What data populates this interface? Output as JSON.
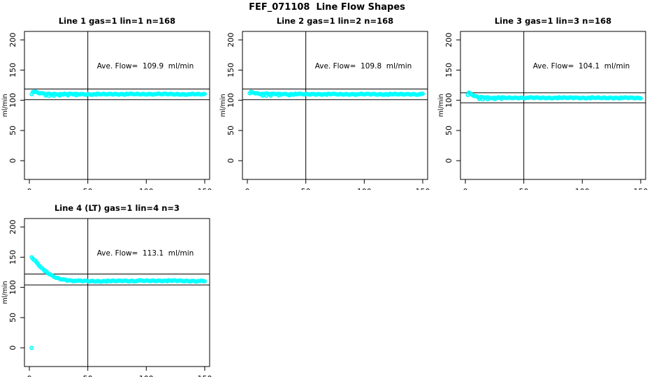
{
  "page_title": "FEF_071108  Line Flow Shapes",
  "colors": {
    "data_color": "#00ffff",
    "axis_color": "#000000",
    "background": "#ffffff"
  },
  "ylabel": "ml/min",
  "x_ticks": [
    0,
    50,
    100,
    150
  ],
  "y_ticks": [
    0,
    50,
    100,
    150,
    200
  ],
  "xlim": [
    -4.2,
    154.2
  ],
  "ylim": [
    -31,
    214
  ],
  "chart_data": [
    {
      "type": "scatter",
      "title": "Line 1 gas=1 lin=1 n=168",
      "annotation": "Ave. Flow=  109.9  ml/min",
      "annotation_label": "Ave. Flow=",
      "ave_flow": 109.9,
      "units": "ml/min",
      "n": 168,
      "vline_x": 50,
      "ref_lines": [
        118.7,
        101.1
      ],
      "profile": [
        [
          2,
          111
        ],
        [
          3,
          113.8
        ],
        [
          5,
          113.5
        ],
        [
          7,
          112.2
        ],
        [
          10,
          111.2
        ],
        [
          15,
          110.6
        ],
        [
          25,
          110.2
        ],
        [
          50,
          110.0
        ],
        [
          100,
          110.2
        ],
        [
          150,
          110.0
        ]
      ],
      "extra_points": [
        [
          14,
          107.8
        ],
        [
          17,
          107.3
        ],
        [
          21,
          107.6
        ],
        [
          26,
          107.9
        ],
        [
          33,
          108.2
        ],
        [
          40,
          108.3
        ]
      ]
    },
    {
      "type": "scatter",
      "title": "Line 2 gas=1 lin=2 n=168",
      "annotation": "Ave. Flow=  109.8  ml/min",
      "annotation_label": "Ave. Flow=",
      "ave_flow": 109.8,
      "units": "ml/min",
      "n": 168,
      "vline_x": 50,
      "ref_lines": [
        118.6,
        101.0
      ],
      "profile": [
        [
          2,
          112
        ],
        [
          3,
          113.5
        ],
        [
          5,
          113.0
        ],
        [
          8,
          111.5
        ],
        [
          12,
          110.8
        ],
        [
          20,
          110.3
        ],
        [
          50,
          110.0
        ],
        [
          150,
          110.0
        ]
      ],
      "extra_points": [
        [
          13,
          107.9
        ],
        [
          16,
          107.4
        ],
        [
          20,
          107.6
        ],
        [
          27,
          108.0
        ],
        [
          36,
          108.2
        ]
      ]
    },
    {
      "type": "scatter",
      "title": "Line 3 gas=1 lin=3 n=168",
      "annotation": "Ave. Flow=  104.1  ml/min",
      "annotation_label": "Ave. Flow=",
      "ave_flow": 104.1,
      "units": "ml/min",
      "n": 168,
      "vline_x": 50,
      "ref_lines": [
        112.4,
        95.8
      ],
      "profile": [
        [
          2,
          109
        ],
        [
          3,
          112.0
        ],
        [
          5,
          110.2
        ],
        [
          8,
          106.5
        ],
        [
          12,
          105.0
        ],
        [
          20,
          104.3
        ],
        [
          40,
          104.0
        ],
        [
          100,
          104.1
        ],
        [
          150,
          103.8
        ]
      ],
      "extra_points": [
        [
          12,
          101.9
        ],
        [
          15,
          101.5
        ],
        [
          19,
          101.8
        ],
        [
          25,
          102.0
        ],
        [
          31,
          102.2
        ]
      ]
    },
    {
      "type": "scatter",
      "title": "Line 4 (LT) gas=1 lin=4 n=3",
      "annotation": "Ave. Flow=  113.1  ml/min",
      "annotation_label": "Ave. Flow=",
      "ave_flow": 113.1,
      "units": "ml/min",
      "n": 3,
      "vline_x": 50,
      "ref_lines": [
        122.1,
        104.1
      ],
      "profile": [
        [
          2,
          149.5
        ],
        [
          3,
          148.0
        ],
        [
          5,
          144.0
        ],
        [
          7,
          139.5
        ],
        [
          9,
          135.5
        ],
        [
          11,
          131.5
        ],
        [
          13,
          128.0
        ],
        [
          15,
          124.5
        ],
        [
          17,
          122.0
        ],
        [
          19,
          119.5
        ],
        [
          22,
          116.8
        ],
        [
          25,
          114.8
        ],
        [
          28,
          113.3
        ],
        [
          32,
          112.0
        ],
        [
          38,
          111.0
        ],
        [
          45,
          110.5
        ],
        [
          60,
          110.3
        ],
        [
          80,
          110.8
        ],
        [
          110,
          111.0
        ],
        [
          130,
          110.8
        ],
        [
          150,
          110.3
        ]
      ],
      "extra_points": [
        [
          2,
          0
        ]
      ]
    }
  ]
}
